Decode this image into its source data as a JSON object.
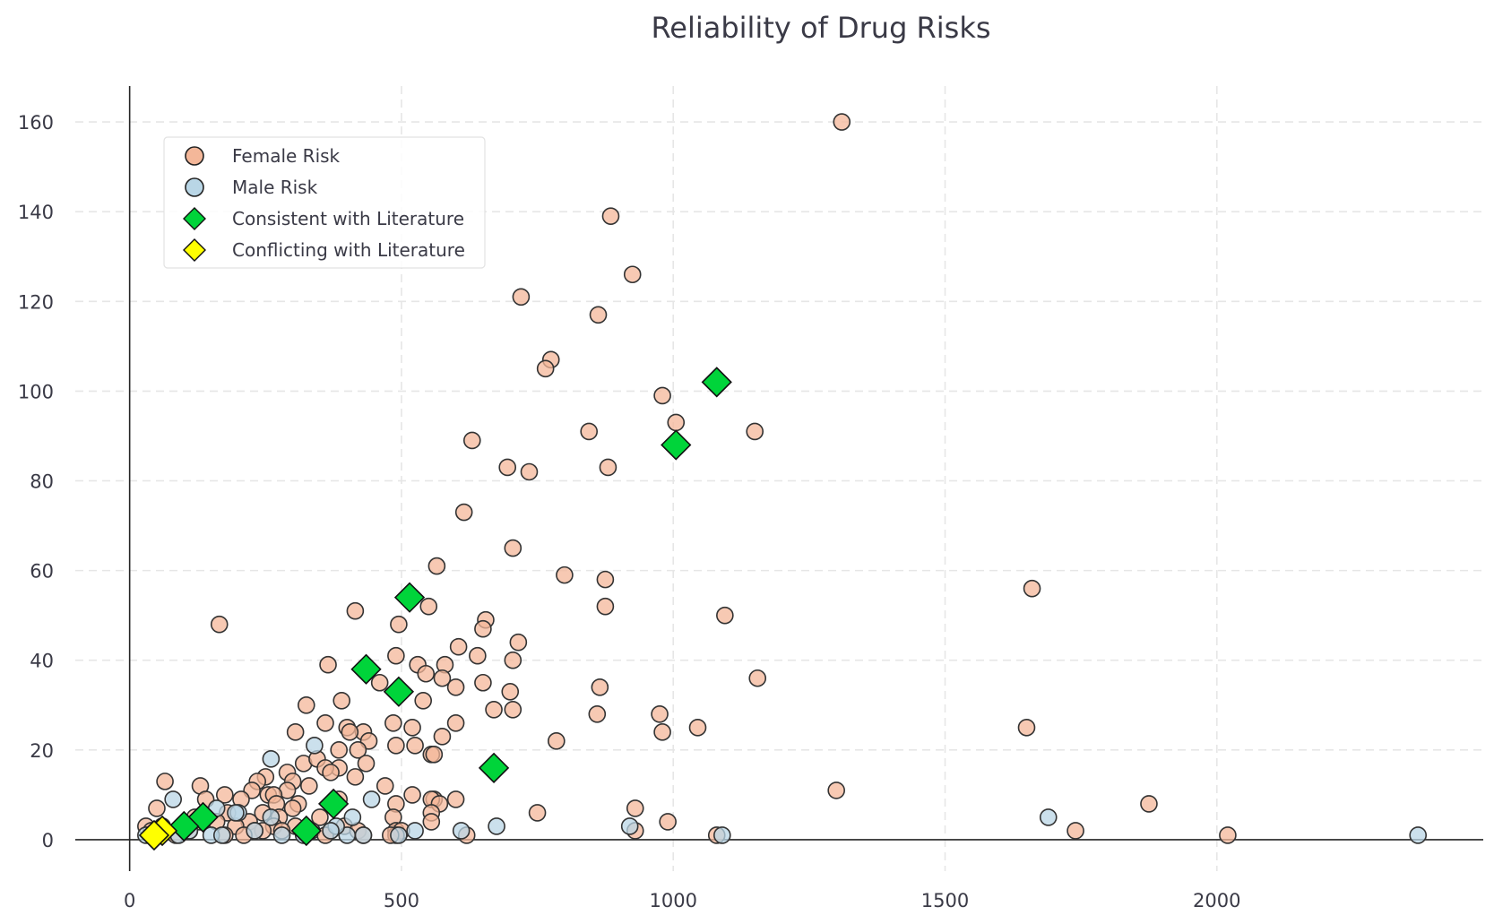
{
  "chart_data": {
    "type": "scatter",
    "title": "Reliability of Drug Risks",
    "xlabel": "",
    "ylabel": "",
    "xlim": [
      -100,
      2490
    ],
    "ylim": [
      -7,
      168
    ],
    "x_ticks": [
      0,
      500,
      1000,
      1500,
      2000
    ],
    "y_ticks": [
      0,
      20,
      40,
      60,
      80,
      100,
      120,
      140,
      160
    ],
    "grid": true,
    "legend_position": "top-left",
    "series": [
      {
        "name": "Female Risk",
        "marker": "circle",
        "color": "#f4b799",
        "points": [
          [
            1310,
            160
          ],
          [
            885,
            139
          ],
          [
            925,
            126
          ],
          [
            720,
            121
          ],
          [
            862,
            117
          ],
          [
            775,
            107
          ],
          [
            765,
            105
          ],
          [
            980,
            99
          ],
          [
            1005,
            93
          ],
          [
            1150,
            91
          ],
          [
            845,
            91
          ],
          [
            630,
            89
          ],
          [
            695,
            83
          ],
          [
            880,
            83
          ],
          [
            735,
            82
          ],
          [
            615,
            73
          ],
          [
            705,
            65
          ],
          [
            800,
            59
          ],
          [
            875,
            58
          ],
          [
            565,
            61
          ],
          [
            1660,
            56
          ],
          [
            550,
            52
          ],
          [
            875,
            52
          ],
          [
            1095,
            50
          ],
          [
            415,
            51
          ],
          [
            165,
            48
          ],
          [
            495,
            48
          ],
          [
            655,
            49
          ],
          [
            650,
            47
          ],
          [
            715,
            44
          ],
          [
            605,
            43
          ],
          [
            640,
            41
          ],
          [
            490,
            41
          ],
          [
            530,
            39
          ],
          [
            580,
            39
          ],
          [
            365,
            39
          ],
          [
            705,
            40
          ],
          [
            545,
            37
          ],
          [
            575,
            36
          ],
          [
            600,
            34
          ],
          [
            650,
            35
          ],
          [
            460,
            35
          ],
          [
            1155,
            36
          ],
          [
            865,
            34
          ],
          [
            700,
            33
          ],
          [
            540,
            31
          ],
          [
            390,
            31
          ],
          [
            325,
            30
          ],
          [
            705,
            29
          ],
          [
            670,
            29
          ],
          [
            860,
            28
          ],
          [
            975,
            28
          ],
          [
            485,
            26
          ],
          [
            600,
            26
          ],
          [
            360,
            26
          ],
          [
            1045,
            25
          ],
          [
            1650,
            25
          ],
          [
            400,
            25
          ],
          [
            520,
            25
          ],
          [
            430,
            24
          ],
          [
            405,
            24
          ],
          [
            305,
            24
          ],
          [
            980,
            24
          ],
          [
            575,
            23
          ],
          [
            440,
            22
          ],
          [
            785,
            22
          ],
          [
            490,
            21
          ],
          [
            525,
            21
          ],
          [
            385,
            20
          ],
          [
            420,
            20
          ],
          [
            555,
            19
          ],
          [
            560,
            19
          ],
          [
            435,
            17
          ],
          [
            320,
            17
          ],
          [
            345,
            18
          ],
          [
            385,
            16
          ],
          [
            360,
            16
          ],
          [
            370,
            15
          ],
          [
            290,
            15
          ],
          [
            415,
            14
          ],
          [
            250,
            14
          ],
          [
            235,
            13
          ],
          [
            65,
            13
          ],
          [
            300,
            13
          ],
          [
            470,
            12
          ],
          [
            130,
            12
          ],
          [
            330,
            12
          ],
          [
            225,
            11
          ],
          [
            290,
            11
          ],
          [
            1300,
            11
          ],
          [
            175,
            10
          ],
          [
            255,
            10
          ],
          [
            265,
            10
          ],
          [
            520,
            10
          ],
          [
            560,
            9
          ],
          [
            600,
            9
          ],
          [
            140,
            9
          ],
          [
            205,
            9
          ],
          [
            385,
            9
          ],
          [
            555,
            9
          ],
          [
            490,
            8
          ],
          [
            270,
            8
          ],
          [
            1875,
            8
          ],
          [
            310,
            8
          ],
          [
            570,
            8
          ],
          [
            50,
            7
          ],
          [
            300,
            7
          ],
          [
            930,
            7
          ],
          [
            180,
            6
          ],
          [
            750,
            6
          ],
          [
            245,
            6
          ],
          [
            555,
            6
          ],
          [
            275,
            5
          ],
          [
            485,
            5
          ],
          [
            350,
            5
          ],
          [
            120,
            5
          ],
          [
            555,
            4
          ],
          [
            990,
            4
          ],
          [
            130,
            4
          ],
          [
            160,
            4
          ],
          [
            220,
            4
          ],
          [
            265,
            3
          ],
          [
            305,
            3
          ],
          [
            395,
            3
          ],
          [
            30,
            3
          ],
          [
            60,
            3
          ],
          [
            195,
            3
          ],
          [
            490,
            2
          ],
          [
            1740,
            2
          ],
          [
            930,
            2
          ],
          [
            370,
            2
          ],
          [
            335,
            2
          ],
          [
            245,
            2
          ],
          [
            40,
            2
          ],
          [
            110,
            2
          ],
          [
            230,
            2
          ],
          [
            280,
            2
          ],
          [
            420,
            2
          ],
          [
            500,
            2
          ],
          [
            2020,
            1
          ],
          [
            1080,
            1
          ],
          [
            620,
            1
          ],
          [
            490,
            1
          ],
          [
            480,
            1
          ],
          [
            40,
            1
          ],
          [
            85,
            1
          ],
          [
            175,
            1
          ],
          [
            210,
            1
          ],
          [
            360,
            1
          ],
          [
            430,
            1
          ]
        ]
      },
      {
        "name": "Male Risk",
        "marker": "circle",
        "color": "#b9d6e6",
        "points": [
          [
            260,
            18
          ],
          [
            340,
            21
          ],
          [
            445,
            9
          ],
          [
            80,
            9
          ],
          [
            1690,
            5
          ],
          [
            410,
            5
          ],
          [
            260,
            5
          ],
          [
            200,
            6
          ],
          [
            160,
            7
          ],
          [
            195,
            6
          ],
          [
            675,
            3
          ],
          [
            920,
            3
          ],
          [
            610,
            2
          ],
          [
            525,
            2
          ],
          [
            495,
            1
          ],
          [
            2370,
            1
          ],
          [
            1090,
            1
          ],
          [
            400,
            1
          ],
          [
            150,
            1
          ],
          [
            90,
            1
          ],
          [
            110,
            2
          ],
          [
            30,
            1
          ],
          [
            280,
            1
          ],
          [
            380,
            3
          ],
          [
            230,
            2
          ],
          [
            370,
            2
          ],
          [
            60,
            3
          ],
          [
            170,
            1
          ],
          [
            320,
            1
          ],
          [
            430,
            1
          ]
        ]
      },
      {
        "name": "Consistent with Literature",
        "marker": "diamond",
        "color": "#00d43a",
        "points": [
          [
            1080,
            102
          ],
          [
            1005,
            88
          ],
          [
            515,
            54
          ],
          [
            435,
            38
          ],
          [
            495,
            33
          ],
          [
            670,
            16
          ],
          [
            375,
            8
          ],
          [
            135,
            5
          ],
          [
            100,
            3
          ],
          [
            325,
            2
          ]
        ]
      },
      {
        "name": "Conflicting with Literature",
        "marker": "diamond",
        "color": "#ffff00",
        "points": [
          [
            60,
            2
          ],
          [
            45,
            1
          ]
        ]
      }
    ]
  }
}
